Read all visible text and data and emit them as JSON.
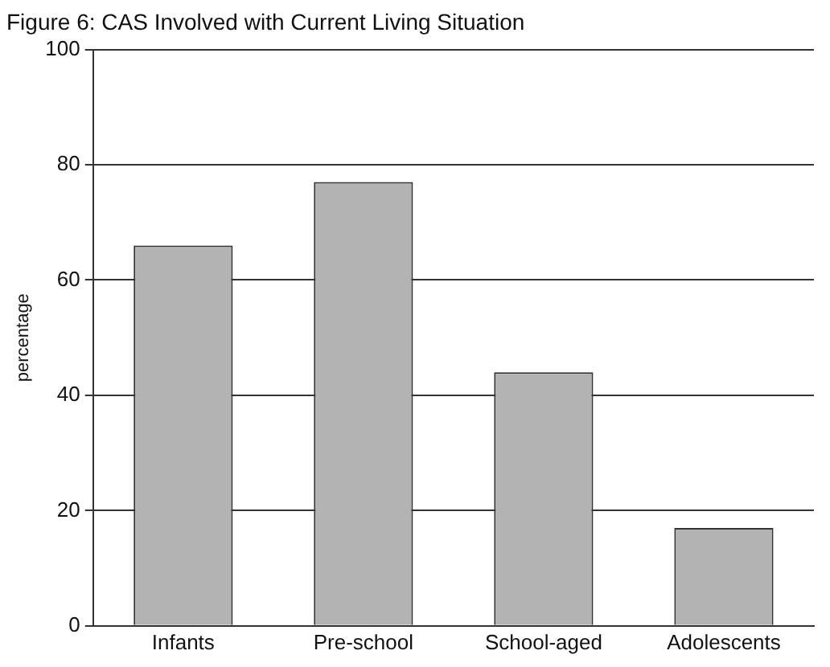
{
  "chart_data": {
    "type": "bar",
    "title": "Figure 6: CAS Involved with Current Living Situation",
    "ylabel": "percentage",
    "categories": [
      "Infants",
      "Pre-school",
      "School-aged",
      "Adolescents"
    ],
    "values": [
      66,
      77,
      44,
      17
    ],
    "color": "#b3b3b3",
    "ylim": [
      0,
      100
    ],
    "yticks": [
      0,
      20,
      40,
      60,
      80,
      100
    ],
    "grid": "y"
  }
}
